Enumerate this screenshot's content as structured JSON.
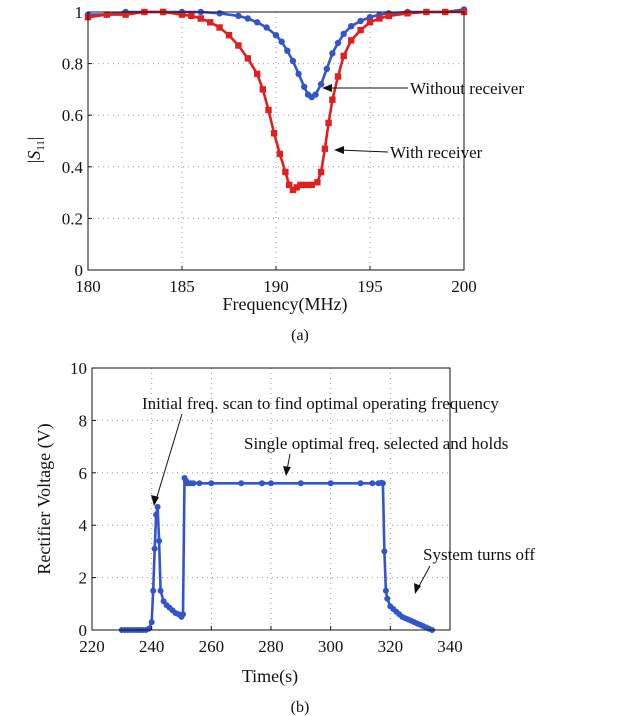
{
  "chart_data": [
    {
      "type": "line",
      "panel_label": "(a)",
      "xlabel": "Frequency(MHz)",
      "ylabel": "|S11|",
      "xlim": [
        180,
        200
      ],
      "ylim": [
        0,
        1
      ],
      "xticks": [
        "180",
        "185",
        "190",
        "195",
        "200"
      ],
      "yticks": [
        "0",
        "0.2",
        "0.4",
        "0.6",
        "0.8",
        "1"
      ],
      "grid": true,
      "series": [
        {
          "color": "#3355cc",
          "marker": "circle",
          "x": [
            180,
            181,
            182,
            183,
            184,
            185,
            186,
            187,
            188,
            188.5,
            189,
            189.5,
            190,
            190.3,
            190.6,
            190.9,
            191.2,
            191.5,
            191.7,
            191.9,
            192.1,
            192.4,
            192.7,
            193,
            193.3,
            193.6,
            194,
            194.5,
            195,
            195.5,
            196,
            197,
            198,
            199,
            200
          ],
          "y": [
            0.99,
            0.99,
            1.0,
            1.0,
            1.0,
            1.0,
            1.0,
            0.995,
            0.985,
            0.975,
            0.96,
            0.94,
            0.91,
            0.885,
            0.85,
            0.81,
            0.76,
            0.71,
            0.68,
            0.67,
            0.68,
            0.72,
            0.78,
            0.84,
            0.88,
            0.915,
            0.945,
            0.965,
            0.98,
            0.99,
            0.995,
            1.0,
            1.0,
            1.0,
            1.01
          ]
        },
        {
          "color": "#e02020",
          "marker": "square",
          "x": [
            180,
            181,
            182,
            183,
            184,
            185,
            185.5,
            186,
            186.5,
            187,
            187.5,
            188,
            188.5,
            189,
            189.3,
            189.6,
            189.9,
            190.2,
            190.5,
            190.7,
            190.9,
            191.1,
            191.3,
            191.6,
            191.9,
            192.2,
            192.4,
            192.6,
            192.8,
            193,
            193.3,
            193.6,
            194,
            194.5,
            195,
            195.5,
            196,
            197,
            198,
            199,
            200
          ],
          "y": [
            0.98,
            0.99,
            0.99,
            1.0,
            1.0,
            0.99,
            0.985,
            0.975,
            0.96,
            0.94,
            0.91,
            0.87,
            0.82,
            0.76,
            0.7,
            0.62,
            0.53,
            0.45,
            0.38,
            0.33,
            0.31,
            0.32,
            0.33,
            0.33,
            0.33,
            0.34,
            0.38,
            0.47,
            0.57,
            0.66,
            0.75,
            0.83,
            0.89,
            0.93,
            0.96,
            0.975,
            0.985,
            0.995,
            1.0,
            1.0,
            1.0
          ]
        }
      ],
      "annotations": [
        {
          "text": "Without receiver",
          "x": 191.7,
          "y": 0.68
        },
        {
          "text": "With receiver",
          "x": 192.4,
          "y": 0.38
        }
      ]
    },
    {
      "type": "line",
      "panel_label": "(b)",
      "xlabel": "Time(s)",
      "ylabel": "Rectifier Voltage (V)",
      "xlim": [
        220,
        340
      ],
      "ylim": [
        0,
        10
      ],
      "xticks": [
        "220",
        "240",
        "260",
        "280",
        "300",
        "320",
        "340"
      ],
      "yticks": [
        "0",
        "2",
        "4",
        "6",
        "8",
        "10"
      ],
      "grid": true,
      "series": [
        {
          "color": "#3355cc",
          "marker": "circle",
          "x": [
            230,
            231,
            232,
            233,
            234,
            235,
            236,
            237,
            238,
            239,
            240,
            240.5,
            241,
            241.5,
            242,
            242.5,
            243,
            244,
            245,
            246,
            247,
            248,
            249,
            250,
            250.5,
            251,
            251.5,
            252,
            253,
            254,
            256,
            260,
            270,
            277,
            280,
            290,
            300,
            310,
            314,
            316,
            317,
            317.5,
            318,
            318.5,
            319,
            320,
            321,
            322,
            323,
            324,
            325,
            326,
            327,
            328,
            329,
            330,
            331,
            332,
            333,
            334
          ],
          "y": [
            0,
            0,
            0,
            0,
            0,
            0,
            0,
            0,
            0,
            0.05,
            0.3,
            1.5,
            3.1,
            4.4,
            4.7,
            3.4,
            1.5,
            1.1,
            0.95,
            0.85,
            0.75,
            0.65,
            0.6,
            0.5,
            0.6,
            5.8,
            5.7,
            5.6,
            5.6,
            5.6,
            5.6,
            5.6,
            5.6,
            5.6,
            5.6,
            5.6,
            5.6,
            5.6,
            5.6,
            5.6,
            5.62,
            5.6,
            3.0,
            1.5,
            1.2,
            0.9,
            0.8,
            0.7,
            0.6,
            0.5,
            0.45,
            0.4,
            0.35,
            0.3,
            0.25,
            0.2,
            0.15,
            0.1,
            0.05,
            0
          ]
        }
      ],
      "annotations": [
        {
          "text": "Initial freq. scan to find optimal operating frequency",
          "x": 241.5,
          "y": 4.6
        },
        {
          "text": "Single optimal freq. selected and holds",
          "x": 285,
          "y": 5.6
        },
        {
          "text": "System turns off",
          "x": 330,
          "y": 0.25
        }
      ]
    }
  ]
}
